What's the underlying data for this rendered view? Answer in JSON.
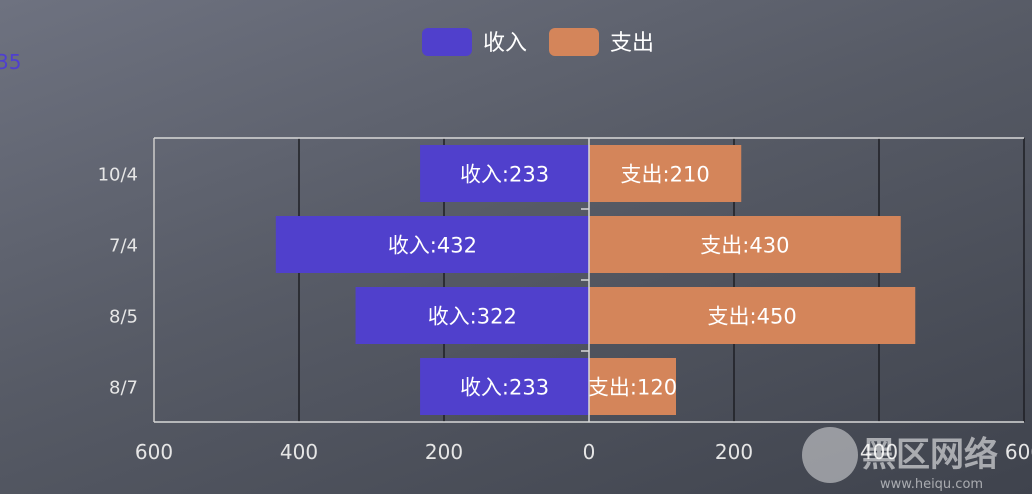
{
  "corner_mark": "35",
  "watermark": {
    "text": "黑区网络",
    "url": "www.heiqu.com"
  },
  "colors": {
    "income": "#5040cc",
    "expense": "#d4855a",
    "grid": "#1e1f24",
    "axis": "#d8d8d8"
  },
  "chart_data": {
    "type": "bar",
    "orientation": "horizontal-diverging",
    "title": "",
    "categories": [
      "10/4",
      "7/4",
      "8/5",
      "8/7"
    ],
    "series": [
      {
        "name": "收入",
        "label_prefix": "收入:",
        "direction": "left",
        "values": [
          233,
          432,
          322,
          233
        ]
      },
      {
        "name": "支出",
        "label_prefix": "支出:",
        "direction": "right",
        "values": [
          210,
          430,
          450,
          120
        ]
      }
    ],
    "x_ticks": [
      {
        "label": "600",
        "value": -600
      },
      {
        "label": "400",
        "value": -400
      },
      {
        "label": "200",
        "value": -200
      },
      {
        "label": "0",
        "value": 0
      },
      {
        "label": "200",
        "value": 200
      },
      {
        "label": "400",
        "value": 400
      },
      {
        "label": "600",
        "value": 600
      }
    ],
    "xlim": [
      -600,
      600
    ],
    "grid": true,
    "legend_position": "top-center"
  }
}
